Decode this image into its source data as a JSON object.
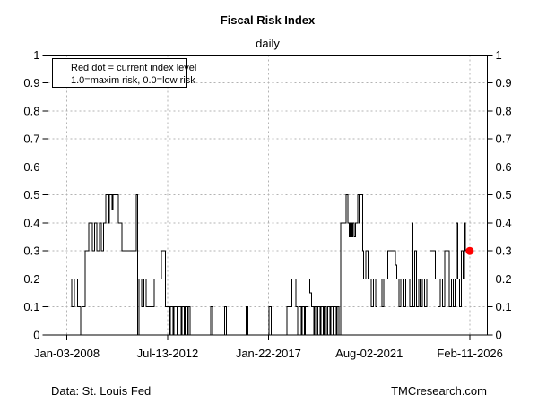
{
  "chart_data": {
    "type": "line",
    "step_style": "step-after",
    "title": "Fiscal Risk Index",
    "subtitle": "daily",
    "grid": {
      "horizontal": true,
      "vertical": true,
      "style": "dashed",
      "color": "#b3b3b3"
    },
    "frame_color": "#000000",
    "x_axis": {
      "range": [
        2007.16,
        2026.89
      ],
      "ticks": [
        {
          "x": 2008.008,
          "label": "Jan-03-2008"
        },
        {
          "x": 2012.533,
          "label": "Jul-13-2012"
        },
        {
          "x": 2017.058,
          "label": "Jan-22-2017"
        },
        {
          "x": 2021.585,
          "label": "Aug-02-2021"
        },
        {
          "x": 2026.112,
          "label": "Feb-11-2026"
        }
      ]
    },
    "y_axis": {
      "range": [
        0,
        1
      ],
      "tick_step": 0.1,
      "tick_labels": [
        "0",
        "0.1",
        "0.2",
        "0.3",
        "0.4",
        "0.5",
        "0.6",
        "0.7",
        "0.8",
        "0.9",
        "1"
      ]
    },
    "series": [
      {
        "name": "fiscal-risk-index",
        "color": "#000000",
        "points": [
          [
            2008.07,
            0.2
          ],
          [
            2008.23,
            0.1
          ],
          [
            2008.35,
            0.2
          ],
          [
            2008.49,
            0.1
          ],
          [
            2008.63,
            0
          ],
          [
            2008.69,
            0.1
          ],
          [
            2008.83,
            0.3
          ],
          [
            2008.99,
            0.4
          ],
          [
            2009.16,
            0.3
          ],
          [
            2009.26,
            0.4
          ],
          [
            2009.36,
            0.3
          ],
          [
            2009.48,
            0.4
          ],
          [
            2009.56,
            0.3
          ],
          [
            2009.66,
            0.4
          ],
          [
            2009.76,
            0.5
          ],
          [
            2009.88,
            0.4
          ],
          [
            2009.92,
            0.5
          ],
          [
            2010.04,
            0.45
          ],
          [
            2010.08,
            0.5
          ],
          [
            2010.32,
            0.4
          ],
          [
            2010.48,
            0.3
          ],
          [
            2011.13,
            0.5
          ],
          [
            2011.19,
            0
          ],
          [
            2011.25,
            0.2
          ],
          [
            2011.37,
            0.1
          ],
          [
            2011.47,
            0.2
          ],
          [
            2011.57,
            0.1
          ],
          [
            2011.93,
            0.2
          ],
          [
            2012.26,
            0.3
          ],
          [
            2012.44,
            0.1
          ],
          [
            2012.62,
            0
          ],
          [
            2012.66,
            0.1
          ],
          [
            2012.78,
            0
          ],
          [
            2012.82,
            0.1
          ],
          [
            2012.96,
            0
          ],
          [
            2013.0,
            0.1
          ],
          [
            2013.14,
            0
          ],
          [
            2013.18,
            0.1
          ],
          [
            2013.28,
            0
          ],
          [
            2013.32,
            0.1
          ],
          [
            2013.42,
            0
          ],
          [
            2013.46,
            0.1
          ],
          [
            2013.54,
            0
          ],
          [
            2014.47,
            0.1
          ],
          [
            2014.55,
            0
          ],
          [
            2015.09,
            0.1
          ],
          [
            2015.17,
            0
          ],
          [
            2016.06,
            0.1
          ],
          [
            2016.14,
            0
          ],
          [
            2017.09,
            0.1
          ],
          [
            2017.19,
            0
          ],
          [
            2017.89,
            0.1
          ],
          [
            2018.11,
            0.2
          ],
          [
            2018.29,
            0.1
          ],
          [
            2018.38,
            0
          ],
          [
            2018.44,
            0.1
          ],
          [
            2018.54,
            0
          ],
          [
            2018.58,
            0.1
          ],
          [
            2018.68,
            0
          ],
          [
            2018.72,
            0.1
          ],
          [
            2018.84,
            0.2
          ],
          [
            2018.92,
            0.15
          ],
          [
            2019.0,
            0.1
          ],
          [
            2019.1,
            0
          ],
          [
            2019.14,
            0.1
          ],
          [
            2019.22,
            0
          ],
          [
            2019.28,
            0.1
          ],
          [
            2019.38,
            0
          ],
          [
            2019.42,
            0.1
          ],
          [
            2019.52,
            0
          ],
          [
            2019.56,
            0.1
          ],
          [
            2019.66,
            0
          ],
          [
            2019.72,
            0.1
          ],
          [
            2019.82,
            0
          ],
          [
            2019.86,
            0.1
          ],
          [
            2019.96,
            0
          ],
          [
            2020.0,
            0.1
          ],
          [
            2020.1,
            0
          ],
          [
            2020.14,
            0.1
          ],
          [
            2020.22,
            0
          ],
          [
            2020.3,
            0.4
          ],
          [
            2020.54,
            0.5
          ],
          [
            2020.63,
            0.4
          ],
          [
            2020.68,
            0.35
          ],
          [
            2020.73,
            0.4
          ],
          [
            2020.81,
            0.35
          ],
          [
            2020.86,
            0.4
          ],
          [
            2020.92,
            0.35
          ],
          [
            2020.98,
            0.4
          ],
          [
            2021.07,
            0.5
          ],
          [
            2021.14,
            0.4
          ],
          [
            2021.17,
            0.5
          ],
          [
            2021.3,
            0.3
          ],
          [
            2021.33,
            0.2
          ],
          [
            2021.44,
            0.3
          ],
          [
            2021.53,
            0.2
          ],
          [
            2021.68,
            0.1
          ],
          [
            2021.77,
            0.2
          ],
          [
            2021.87,
            0.1
          ],
          [
            2021.93,
            0.2
          ],
          [
            2022.16,
            0.1
          ],
          [
            2022.23,
            0.2
          ],
          [
            2022.43,
            0.3
          ],
          [
            2022.76,
            0.25
          ],
          [
            2022.83,
            0.2
          ],
          [
            2022.92,
            0.1
          ],
          [
            2023.0,
            0.2
          ],
          [
            2023.15,
            0.1
          ],
          [
            2023.23,
            0.2
          ],
          [
            2023.4,
            0.1
          ],
          [
            2023.5,
            0.4
          ],
          [
            2023.54,
            0.1
          ],
          [
            2023.63,
            0.3
          ],
          [
            2023.7,
            0.1
          ],
          [
            2023.81,
            0.2
          ],
          [
            2023.87,
            0.1
          ],
          [
            2023.98,
            0.2
          ],
          [
            2024.07,
            0.1
          ],
          [
            2024.18,
            0.2
          ],
          [
            2024.31,
            0.3
          ],
          [
            2024.56,
            0.2
          ],
          [
            2024.68,
            0.1
          ],
          [
            2024.78,
            0.2
          ],
          [
            2024.88,
            0.1
          ],
          [
            2024.98,
            0.3
          ],
          [
            2025.18,
            0.1
          ],
          [
            2025.28,
            0.2
          ],
          [
            2025.36,
            0.1
          ],
          [
            2025.44,
            0.2
          ],
          [
            2025.5,
            0.4
          ],
          [
            2025.56,
            0.2
          ],
          [
            2025.64,
            0.1
          ],
          [
            2025.72,
            0.3
          ],
          [
            2025.8,
            0.2
          ],
          [
            2025.87,
            0.4
          ],
          [
            2025.9,
            0.3
          ],
          [
            2026.1,
            0.3
          ]
        ]
      }
    ],
    "current_marker": {
      "x": 2026.1,
      "y": 0.3,
      "color": "#ff0000",
      "radius": 4.5,
      "label": "current index level"
    },
    "annotations": {
      "legend_line1": "Red dot = current index level",
      "legend_line2": "1.0=maxim risk, 0.0=low risk"
    },
    "footer": {
      "left": "Data: St. Louis Fed",
      "right": "TMCresearch.com"
    }
  }
}
